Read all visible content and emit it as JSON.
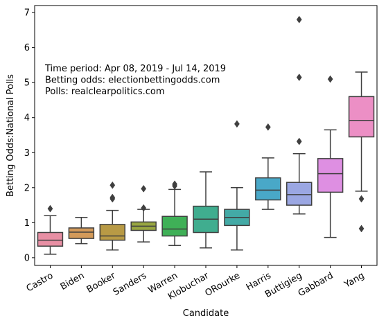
{
  "chart_data": {
    "type": "box",
    "xlabel": "Candidate",
    "ylabel": "Betting Odds:National Polls",
    "ylim": [
      -0.22,
      7.2
    ],
    "yticks": [
      0,
      1,
      2,
      3,
      4,
      5,
      6,
      7
    ],
    "annotation": [
      "Time period: Apr 08, 2019 - Jul 14, 2019",
      "Betting odds: electionbettingodds.com",
      "Polls: realclearpolitics.com"
    ],
    "categories": [
      "Castro",
      "Biden",
      "Booker",
      "Sanders",
      "Warren",
      "Klobuchar",
      "ORourke",
      "Harris",
      "Buttigieg",
      "Gabbard",
      "Yang"
    ],
    "boxes": [
      {
        "name": "Castro",
        "color": "#e88fa4",
        "whislo": 0.1,
        "q1": 0.33,
        "med": 0.5,
        "q3": 0.72,
        "whishi": 1.2,
        "fliers": [
          1.4
        ]
      },
      {
        "name": "Biden",
        "color": "#d39a5a",
        "whislo": 0.4,
        "q1": 0.55,
        "med": 0.73,
        "q3": 0.85,
        "whishi": 1.15,
        "fliers": []
      },
      {
        "name": "Booker",
        "color": "#b89a45",
        "whislo": 0.22,
        "q1": 0.5,
        "med": 0.62,
        "q3": 0.95,
        "whishi": 1.35,
        "fliers": [
          1.68,
          1.72,
          2.07
        ]
      },
      {
        "name": "Sanders",
        "color": "#98a640",
        "whislo": 0.45,
        "q1": 0.78,
        "med": 0.9,
        "q3": 1.02,
        "whishi": 1.38,
        "fliers": [
          1.42,
          1.97
        ]
      },
      {
        "name": "Warren",
        "color": "#3fb057",
        "whislo": 0.35,
        "q1": 0.62,
        "med": 0.82,
        "q3": 1.18,
        "whishi": 1.95,
        "fliers": [
          2.05,
          2.1
        ]
      },
      {
        "name": "Klobuchar",
        "color": "#40ad8f",
        "whislo": 0.28,
        "q1": 0.72,
        "med": 1.1,
        "q3": 1.47,
        "whishi": 2.45,
        "fliers": []
      },
      {
        "name": "ORourke",
        "color": "#43aaa6",
        "whislo": 0.22,
        "q1": 0.92,
        "med": 1.15,
        "q3": 1.38,
        "whishi": 2.0,
        "fliers": [
          3.82
        ]
      },
      {
        "name": "Harris",
        "color": "#49a8c8",
        "whislo": 1.38,
        "q1": 1.65,
        "med": 1.93,
        "q3": 2.28,
        "whishi": 2.85,
        "fliers": [
          3.73
        ]
      },
      {
        "name": "Buttigieg",
        "color": "#9ba7e3",
        "whislo": 1.25,
        "q1": 1.5,
        "med": 1.8,
        "q3": 2.15,
        "whishi": 2.97,
        "fliers": [
          3.32,
          5.15,
          6.8
        ]
      },
      {
        "name": "Gabbard",
        "color": "#de8fe2",
        "whislo": 0.58,
        "q1": 1.87,
        "med": 2.4,
        "q3": 2.83,
        "whishi": 3.65,
        "fliers": [
          5.1
        ]
      },
      {
        "name": "Yang",
        "color": "#ec8fc5",
        "whislo": 1.9,
        "q1": 3.45,
        "med": 3.92,
        "q3": 4.6,
        "whishi": 5.3,
        "fliers": [
          0.83,
          1.68
        ]
      }
    ]
  }
}
